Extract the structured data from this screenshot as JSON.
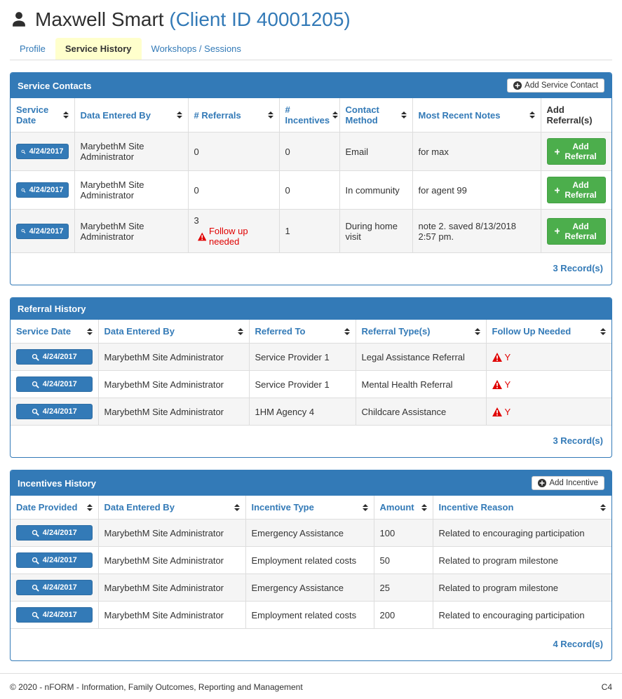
{
  "header": {
    "client_name": "Maxwell Smart",
    "client_id": "(Client ID 40001205)"
  },
  "tabs": [
    {
      "label": "Profile",
      "active": false
    },
    {
      "label": "Service History",
      "active": true
    },
    {
      "label": "Workshops / Sessions",
      "active": false
    }
  ],
  "colors": {
    "accent_blue": "#337ab7",
    "button_green": "#4cae4c",
    "alert_red": "#e00000",
    "active_tab_yellow": "#ffffcc"
  },
  "icons": {
    "client": "person-icon",
    "view_record": "search-icon",
    "warning": "warning-triangle-icon",
    "header_add": "plus-circle-icon",
    "row_add": "plus-icon",
    "sort": "sort-arrows-icon"
  },
  "panels": [
    {
      "title": "Service Contacts",
      "add_button_label": "Add Service Contact",
      "columns": [
        {
          "label": "Service Date",
          "key": "date",
          "type": "datebtn",
          "sortable": true
        },
        {
          "label": "Data Entered By",
          "key": "entered_by",
          "type": "text",
          "sortable": true
        },
        {
          "label": "# Referrals",
          "key": "referrals",
          "type": "num_warn",
          "sortable": true
        },
        {
          "label": "# Incentives",
          "key": "incentives",
          "type": "text",
          "sortable": true
        },
        {
          "label": "Contact Method",
          "key": "method",
          "type": "text",
          "sortable": true
        },
        {
          "label": "Most Recent Notes",
          "key": "notes",
          "type": "text",
          "sortable": true
        },
        {
          "label": "Add Referral(s)",
          "key": "add",
          "type": "addbtn",
          "sortable": false
        }
      ],
      "rows": [
        {
          "date": "4/24/2017",
          "entered_by": "MarybethM Site Administrator",
          "referrals": "0",
          "incentives": "0",
          "method": "Email",
          "notes": "for max",
          "add": "Add Referral"
        },
        {
          "date": "4/24/2017",
          "entered_by": "MarybethM Site Administrator",
          "referrals": "0",
          "incentives": "0",
          "method": "In community",
          "notes": "for agent 99",
          "add": "Add Referral"
        },
        {
          "date": "4/24/2017",
          "entered_by": "MarybethM Site Administrator",
          "referrals": "3",
          "referrals_warning": "Follow up needed",
          "incentives": "1",
          "method": "During home visit",
          "notes": "note 2. saved 8/13/2018 2:57 pm.",
          "add": "Add Referral"
        }
      ],
      "record_count": "3 Record(s)"
    },
    {
      "title": "Referral History",
      "columns": [
        {
          "label": "Service Date",
          "key": "date",
          "type": "datebtn",
          "sortable": true
        },
        {
          "label": "Data Entered By",
          "key": "entered_by",
          "type": "text",
          "sortable": true
        },
        {
          "label": "Referred To",
          "key": "referred_to",
          "type": "text",
          "sortable": true
        },
        {
          "label": "Referral Type(s)",
          "key": "referral_type",
          "type": "text",
          "sortable": true
        },
        {
          "label": "Follow Up Needed",
          "key": "followup",
          "type": "warn_y",
          "sortable": true
        }
      ],
      "rows": [
        {
          "date": "4/24/2017",
          "entered_by": "MarybethM Site Administrator",
          "referred_to": "Service Provider 1",
          "referral_type": "Legal Assistance Referral",
          "followup": "Y"
        },
        {
          "date": "4/24/2017",
          "entered_by": "MarybethM Site Administrator",
          "referred_to": "Service Provider 1",
          "referral_type": "Mental Health Referral",
          "followup": "Y"
        },
        {
          "date": "4/24/2017",
          "entered_by": "MarybethM Site Administrator",
          "referred_to": "1HM Agency 4",
          "referral_type": "Childcare Assistance",
          "followup": "Y"
        }
      ],
      "record_count": "3 Record(s)"
    },
    {
      "title": "Incentives History",
      "add_button_label": "Add Incentive",
      "columns": [
        {
          "label": "Date Provided",
          "key": "date",
          "type": "datebtn",
          "sortable": true
        },
        {
          "label": "Data Entered By",
          "key": "entered_by",
          "type": "text",
          "sortable": true
        },
        {
          "label": "Incentive Type",
          "key": "type",
          "type": "text",
          "sortable": true
        },
        {
          "label": "Amount",
          "key": "amount",
          "type": "text",
          "sortable": true
        },
        {
          "label": "Incentive Reason",
          "key": "reason",
          "type": "text",
          "sortable": true
        }
      ],
      "rows": [
        {
          "date": "4/24/2017",
          "entered_by": "MarybethM Site Administrator",
          "type": "Emergency Assistance",
          "amount": "100",
          "reason": "Related to encouraging participation"
        },
        {
          "date": "4/24/2017",
          "entered_by": "MarybethM Site Administrator",
          "type": "Employment related costs",
          "amount": "50",
          "reason": "Related to program milestone"
        },
        {
          "date": "4/24/2017",
          "entered_by": "MarybethM Site Administrator",
          "type": "Emergency Assistance",
          "amount": "25",
          "reason": "Related to program milestone"
        },
        {
          "date": "4/24/2017",
          "entered_by": "MarybethM Site Administrator",
          "type": "Employment related costs",
          "amount": "200",
          "reason": "Related to encouraging participation"
        }
      ],
      "record_count": "4 Record(s)"
    }
  ],
  "footer": {
    "copyright": "© 2020 - nFORM - Information, Family Outcomes, Reporting and Management",
    "page_code": "C4"
  }
}
